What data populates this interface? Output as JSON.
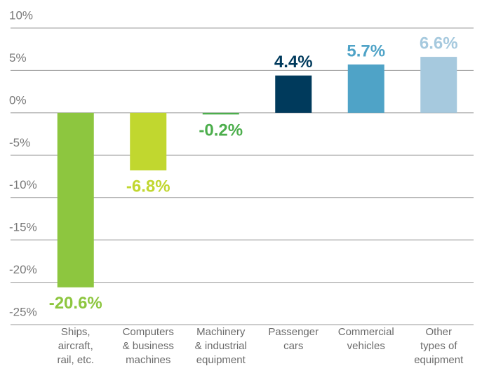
{
  "chart_data": {
    "type": "bar",
    "categories": [
      "Ships,\naircraft,\nrail, etc.",
      "Computers\n& business\nmachines",
      "Machinery\n& industrial\nequipment",
      "Passenger\ncars",
      "Commercial\nvehicles",
      "Other\ntypes of\nequipment"
    ],
    "values": [
      -20.6,
      -6.8,
      -0.2,
      4.4,
      5.7,
      6.6
    ],
    "value_labels": [
      "-20.6%",
      "-6.8%",
      "-0.2%",
      "4.4%",
      "5.7%",
      "6.6%"
    ],
    "colors": [
      "#8dc63f",
      "#c1d72f",
      "#4cae4c",
      "#003a5c",
      "#4fa3c7",
      "#a6c9de"
    ],
    "ylim": [
      -25,
      10
    ],
    "yticks": [
      {
        "value": 10,
        "label": "10%"
      },
      {
        "value": 5,
        "label": "5%"
      },
      {
        "value": 0,
        "label": "0%"
      },
      {
        "value": -5,
        "label": "-5%"
      },
      {
        "value": -10,
        "label": "-10%"
      },
      {
        "value": -15,
        "label": "-15%"
      },
      {
        "value": -20,
        "label": "-20%"
      },
      {
        "value": -25,
        "label": "-25%"
      }
    ],
    "grid": true
  }
}
